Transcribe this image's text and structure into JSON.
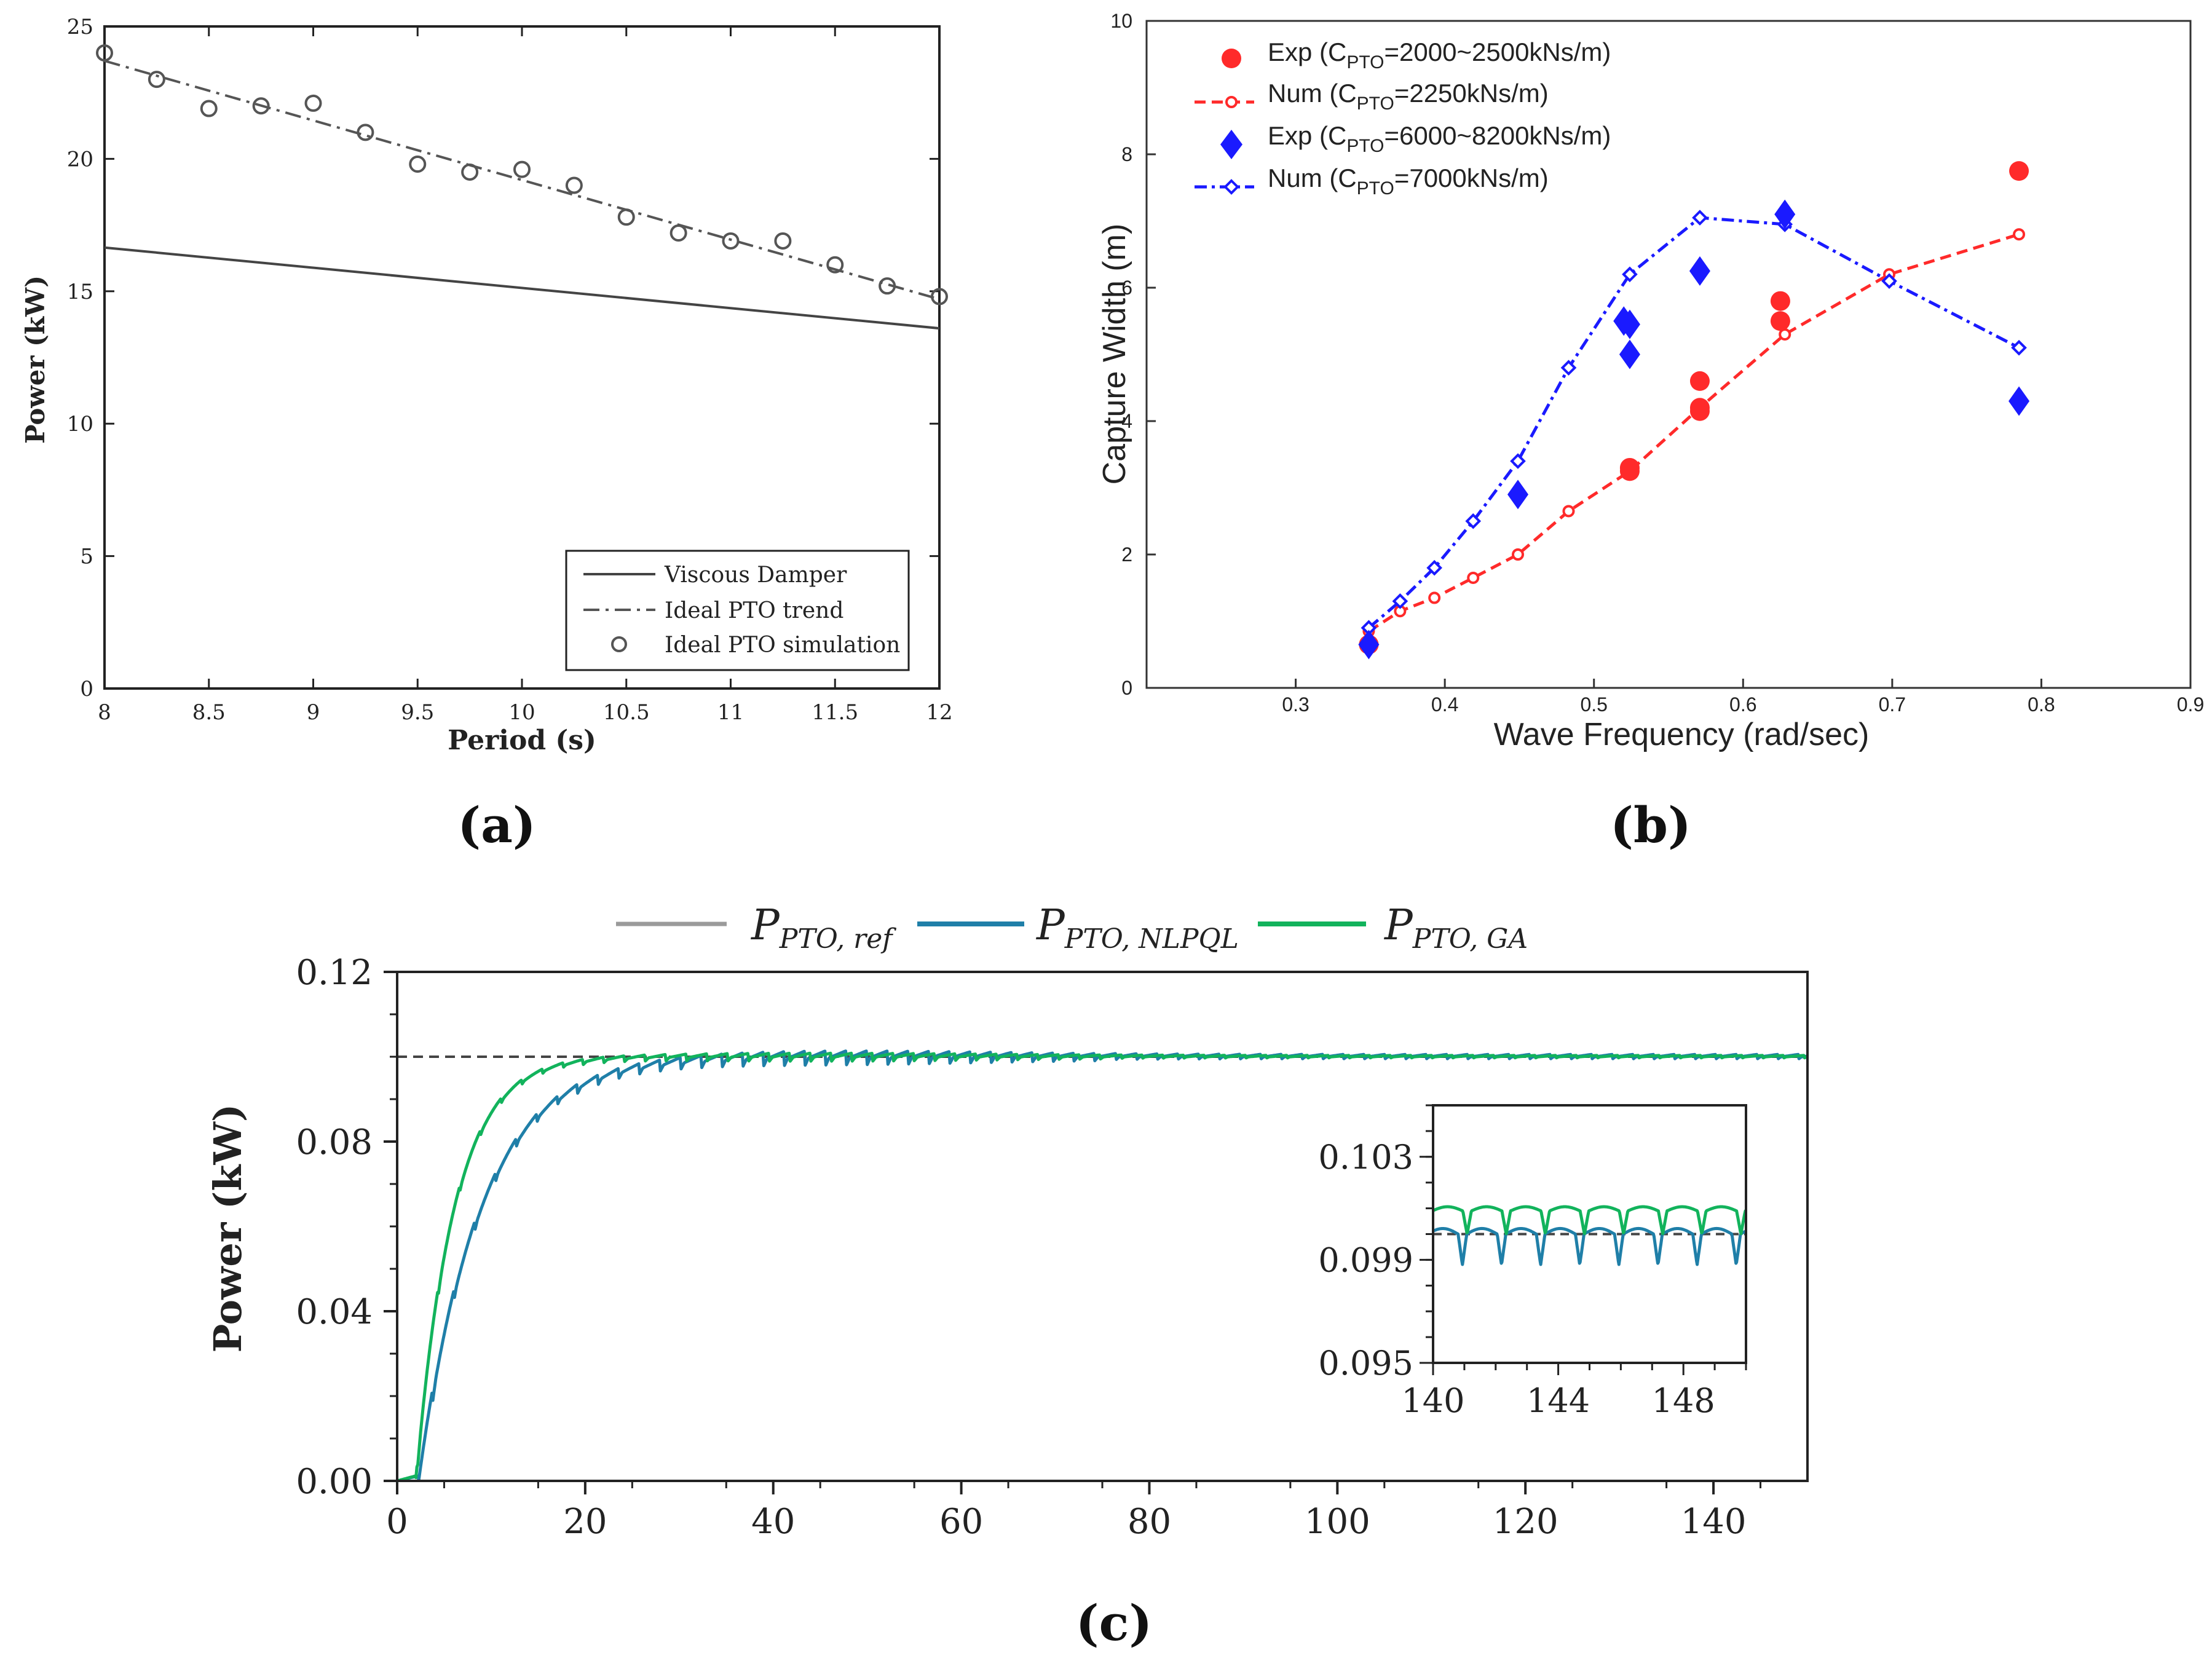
{
  "chart_data": [
    {
      "panel": "(a)",
      "type": "line",
      "title": "",
      "xlabel": "Period (s)",
      "ylabel": "Power (kW)",
      "xlim": [
        8,
        12
      ],
      "ylim": [
        0,
        25
      ],
      "xticks": [
        "8",
        "8.5",
        "9",
        "9.5",
        "10",
        "10.5",
        "11",
        "11.5",
        "12"
      ],
      "yticks": [
        "0",
        "5",
        "10",
        "15",
        "20",
        "25"
      ],
      "grid": false,
      "legend_position": "bottom-right",
      "series": [
        {
          "name": "Viscous Damper",
          "style": "solid",
          "x": [
            8,
            12
          ],
          "y": [
            16.65,
            13.6
          ]
        },
        {
          "name": "Ideal PTO trend",
          "style": "dash-dot",
          "x": [
            8,
            12
          ],
          "y": [
            23.7,
            14.7
          ]
        },
        {
          "name": "Ideal PTO simulation",
          "style": "open-circle",
          "x": [
            8,
            8.25,
            8.5,
            8.75,
            9,
            9.25,
            9.5,
            9.75,
            10,
            10.25,
            10.5,
            10.75,
            11,
            11.25,
            11.5,
            11.75,
            12
          ],
          "y": [
            24.0,
            23.0,
            21.9,
            22.0,
            22.1,
            21.0,
            19.8,
            19.5,
            19.6,
            19.0,
            17.8,
            17.2,
            16.9,
            16.9,
            16.0,
            15.2,
            14.8
          ]
        }
      ]
    },
    {
      "panel": "(b)",
      "type": "line",
      "title": "",
      "xlabel": "Wave Frequency (rad/sec)",
      "ylabel": "Capture Width (m)",
      "xlim": [
        0.2,
        0.9
      ],
      "ylim": [
        0,
        10
      ],
      "xticks": [
        "0.3",
        "0.4",
        "0.5",
        "0.6",
        "0.7",
        "0.8",
        "0.9"
      ],
      "yticks": [
        "0",
        "2",
        "4",
        "6",
        "8",
        "10"
      ],
      "grid": false,
      "legend_position": "top-left",
      "legend": [
        {
          "prefix": "Exp (C",
          "sub": "PTO",
          "suffix": "=2000~2500kNs/m)"
        },
        {
          "prefix": "Num (C",
          "sub": "PTO",
          "suffix": "=2250kNs/m)"
        },
        {
          "prefix": "Exp (C",
          "sub": "PTO",
          "suffix": "=6000~8200kNs/m)"
        },
        {
          "prefix": "Num (C",
          "sub": "PTO",
          "suffix": "=7000kNs/m)"
        }
      ],
      "series": [
        {
          "name": "Exp (CPTO=2000~2500kNs/m)",
          "color": "#ff2a2a",
          "marker": "filled-circle",
          "x": [
            0.349,
            0.524,
            0.524,
            0.571,
            0.571,
            0.571,
            0.625,
            0.625,
            0.785
          ],
          "y": [
            0.65,
            3.25,
            3.3,
            4.6,
            4.2,
            4.15,
            5.8,
            5.5,
            7.75
          ]
        },
        {
          "name": "Num (CPTO=2250kNs/m)",
          "color": "#ff2a2a",
          "marker": "open-circle",
          "style": "dashed",
          "x": [
            0.349,
            0.37,
            0.393,
            0.419,
            0.449,
            0.483,
            0.524,
            0.571,
            0.628,
            0.698,
            0.785
          ],
          "y": [
            0.85,
            1.15,
            1.35,
            1.65,
            2.0,
            2.65,
            3.25,
            4.2,
            5.3,
            6.2,
            6.8
          ]
        },
        {
          "name": "Exp (CPTO=6000~8200kNs/m)",
          "color": "#1a1aff",
          "marker": "filled-diamond",
          "x": [
            0.349,
            0.449,
            0.52,
            0.524,
            0.524,
            0.571,
            0.628,
            0.785
          ],
          "y": [
            0.65,
            2.9,
            5.5,
            5.45,
            5.0,
            6.25,
            7.1,
            4.3
          ]
        },
        {
          "name": "Num (CPTO=7000kNs/m)",
          "color": "#1a1aff",
          "marker": "open-diamond",
          "style": "dash-dot",
          "x": [
            0.349,
            0.37,
            0.393,
            0.419,
            0.449,
            0.483,
            0.524,
            0.571,
            0.628,
            0.698,
            0.785
          ],
          "y": [
            0.9,
            1.3,
            1.8,
            2.5,
            3.4,
            4.8,
            6.2,
            7.05,
            6.95,
            6.1,
            5.1
          ]
        }
      ]
    },
    {
      "panel": "(c)",
      "type": "line",
      "title": "",
      "xlabel": "",
      "ylabel": "Power (kW)",
      "xlim": [
        0,
        150
      ],
      "ylim": [
        0,
        0.12
      ],
      "xticks": [
        "0",
        "20",
        "40",
        "60",
        "80",
        "100",
        "120",
        "140"
      ],
      "yticks": [
        "0.00",
        "0.04",
        "0.08",
        "0.12"
      ],
      "grid": false,
      "legend_position": "top",
      "legend": [
        {
          "base": "P",
          "sub": "PTO, ref"
        },
        {
          "base": "P",
          "sub": "PTO, NLPQL"
        },
        {
          "base": "P",
          "sub": "PTO, GA"
        }
      ],
      "series": [
        {
          "name": "PPTO, ref",
          "color": "#444444",
          "style": "dashed",
          "x": [
            0,
            150
          ],
          "y": [
            0.1,
            0.1
          ]
        },
        {
          "name": "PPTO, NLPQL",
          "color": "#1f7fa8",
          "style": "solid",
          "model": "rise-with-ripple",
          "steady_value": 0.1,
          "rise_start": 2.3,
          "time_constant": 6.5,
          "ripple_amplitude": 0.0014,
          "ripple_period": 2.2
        },
        {
          "name": "PPTO, GA",
          "color": "#12b35c",
          "style": "solid",
          "model": "rise-with-ripple",
          "steady_value": 0.1,
          "rise_start": 2.0,
          "time_constant": 4.0,
          "ripple_amplitude": 0.0008,
          "ripple_period": 2.2
        }
      ],
      "inset": {
        "xlim": [
          140,
          150
        ],
        "ylim": [
          0.095,
          0.105
        ],
        "xticks": [
          "140",
          "144",
          "148"
        ],
        "yticks": [
          "0.095",
          "0.099",
          "0.103"
        ],
        "series": [
          {
            "name": "PPTO, ref",
            "color": "#444444",
            "style": "dashed",
            "level": 0.1
          },
          {
            "name": "PPTO, NLPQL",
            "color": "#1f7fa8",
            "mean": 0.1,
            "dip": 0.0012,
            "period": 1.25
          },
          {
            "name": "PPTO, GA",
            "color": "#12b35c",
            "mean": 0.1009,
            "dip": 0.0009,
            "period": 1.25
          }
        ]
      }
    }
  ],
  "labels": {
    "a": "(a)",
    "b": "(b)",
    "c": "(c)"
  }
}
